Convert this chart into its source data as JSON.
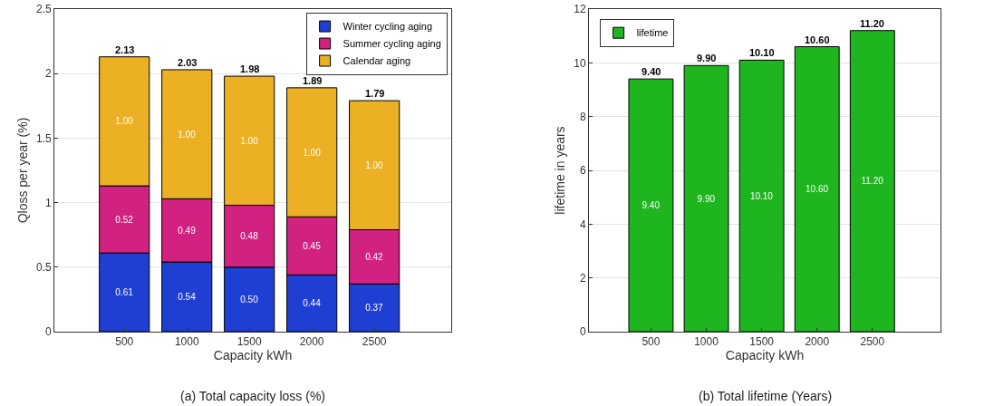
{
  "chart_data": [
    {
      "type": "bar",
      "stacked": true,
      "categories": [
        "500",
        "1000",
        "1500",
        "2000",
        "2500"
      ],
      "xlabel": "Capacity kWh",
      "ylabel": "Qloss per year (%)",
      "ylim": [
        0,
        2.5
      ],
      "yticks": [
        0,
        0.5,
        1,
        1.5,
        2,
        2.5
      ],
      "grid": true,
      "legend": "top right",
      "annotations": [
        "(a) Total capacity loss (%)"
      ],
      "totals": [
        "2.13",
        "2.03",
        "1.98",
        "1.89",
        "1.79"
      ],
      "series": [
        {
          "name": "Winter cycling aging",
          "color": "#1f3ed2",
          "values": [
            0.61,
            0.54,
            0.5,
            0.44,
            0.37
          ],
          "value_labels": [
            "0.61",
            "0.54",
            "0.50",
            "0.44",
            "0.37"
          ]
        },
        {
          "name": "Summer cycling aging",
          "color": "#d12282",
          "values": [
            0.52,
            0.49,
            0.48,
            0.45,
            0.42
          ],
          "value_labels": [
            "0.52",
            "0.49",
            "0.48",
            "0.45",
            "0.42"
          ]
        },
        {
          "name": "Calendar aging",
          "color": "#ebb023",
          "values": [
            1.0,
            1.0,
            1.0,
            1.0,
            1.0
          ],
          "value_labels": [
            "1.00",
            "1.00",
            "1.00",
            "1.00",
            "1.00"
          ]
        }
      ]
    },
    {
      "type": "bar",
      "categories": [
        "500",
        "1000",
        "1500",
        "2000",
        "2500"
      ],
      "xlabel": "Capacity kWh",
      "ylabel": "lifetime in years",
      "ylim": [
        0,
        12
      ],
      "yticks": [
        0,
        2,
        4,
        6,
        8,
        10,
        12
      ],
      "grid": true,
      "legend": "top left",
      "annotations": [
        "(b) Total lifetime (Years)"
      ],
      "totals": [
        "9.40",
        "9.90",
        "10.10",
        "10.60",
        "11.20"
      ],
      "series": [
        {
          "name": "lifetime",
          "color": "#1fb51f",
          "values": [
            9.4,
            9.9,
            10.1,
            10.6,
            11.2
          ],
          "value_labels": [
            "9.40",
            "9.90",
            "10.10",
            "10.60",
            "11.20"
          ]
        }
      ]
    }
  ]
}
